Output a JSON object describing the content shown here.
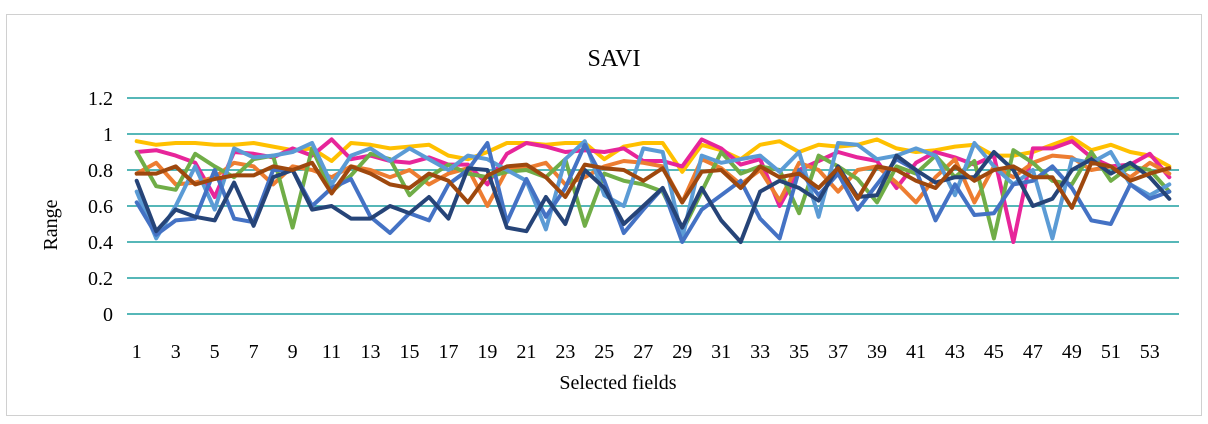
{
  "chart_data": {
    "type": "line",
    "title": "SAVI",
    "xlabel": "Selected fields",
    "ylabel": "Range",
    "ylim": [
      0,
      1.2
    ],
    "yticks": [
      "0",
      "0.2",
      "0.4",
      "0.6",
      "0.8",
      "1",
      "1.2"
    ],
    "xtick_labels": [
      "1",
      "3",
      "5",
      "7",
      "9",
      "11",
      "13",
      "15",
      "17",
      "19",
      "21",
      "23",
      "25",
      "27",
      "29",
      "31",
      "33",
      "35",
      "37",
      "39",
      "41",
      "43",
      "45",
      "47",
      "49",
      "51",
      "53"
    ],
    "grid": true,
    "legend": "none",
    "x": [
      1,
      2,
      3,
      4,
      5,
      6,
      7,
      8,
      9,
      10,
      11,
      12,
      13,
      14,
      15,
      16,
      17,
      18,
      19,
      20,
      21,
      22,
      23,
      24,
      25,
      26,
      27,
      28,
      29,
      30,
      31,
      32,
      33,
      34,
      35,
      36,
      37,
      38,
      39,
      40,
      41,
      42,
      43,
      44,
      45,
      46,
      47,
      48,
      49,
      50,
      51,
      52,
      53,
      54
    ],
    "series": [
      {
        "color": "#ffc000",
        "values": [
          0.96,
          0.94,
          0.95,
          0.95,
          0.94,
          0.94,
          0.95,
          0.93,
          0.91,
          0.92,
          0.85,
          0.95,
          0.94,
          0.92,
          0.93,
          0.94,
          0.88,
          0.86,
          0.9,
          0.95,
          0.95,
          0.94,
          0.95,
          0.95,
          0.86,
          0.93,
          0.95,
          0.95,
          0.79,
          0.94,
          0.91,
          0.86,
          0.94,
          0.96,
          0.9,
          0.94,
          0.93,
          0.94,
          0.97,
          0.92,
          0.9,
          0.91,
          0.93,
          0.94,
          0.88,
          0.88,
          0.9,
          0.94,
          0.98,
          0.91,
          0.94,
          0.9,
          0.88,
          0.82
        ]
      },
      {
        "color": "#e7259a",
        "values": [
          0.9,
          0.91,
          0.88,
          0.84,
          0.65,
          0.9,
          0.89,
          0.87,
          0.92,
          0.88,
          0.97,
          0.86,
          0.88,
          0.85,
          0.84,
          0.87,
          0.83,
          0.83,
          0.72,
          0.89,
          0.95,
          0.93,
          0.9,
          0.91,
          0.9,
          0.92,
          0.85,
          0.85,
          0.82,
          0.97,
          0.92,
          0.83,
          0.86,
          0.6,
          0.8,
          0.85,
          0.9,
          0.87,
          0.85,
          0.7,
          0.84,
          0.9,
          0.87,
          0.83,
          0.88,
          0.4,
          0.92,
          0.92,
          0.96,
          0.87,
          0.82,
          0.83,
          0.89,
          0.76
        ]
      },
      {
        "color": "#ed7d31",
        "values": [
          0.78,
          0.84,
          0.72,
          0.73,
          0.76,
          0.84,
          0.82,
          0.72,
          0.82,
          0.8,
          0.76,
          0.82,
          0.8,
          0.76,
          0.8,
          0.72,
          0.78,
          0.81,
          0.6,
          0.8,
          0.81,
          0.84,
          0.72,
          0.76,
          0.82,
          0.85,
          0.84,
          0.82,
          0.62,
          0.86,
          0.81,
          0.72,
          0.8,
          0.63,
          0.84,
          0.8,
          0.68,
          0.8,
          0.82,
          0.73,
          0.62,
          0.76,
          0.86,
          0.62,
          0.82,
          0.76,
          0.84,
          0.88,
          0.87,
          0.8,
          0.82,
          0.76,
          0.84,
          0.78
        ]
      },
      {
        "color": "#70ad47",
        "values": [
          0.9,
          0.71,
          0.69,
          0.89,
          0.82,
          0.76,
          0.86,
          0.88,
          0.48,
          0.92,
          0.68,
          0.77,
          0.89,
          0.86,
          0.66,
          0.76,
          0.83,
          0.78,
          0.76,
          0.79,
          0.8,
          0.76,
          0.86,
          0.49,
          0.78,
          0.74,
          0.72,
          0.68,
          0.46,
          0.68,
          0.9,
          0.78,
          0.82,
          0.8,
          0.56,
          0.88,
          0.82,
          0.75,
          0.62,
          0.82,
          0.78,
          0.88,
          0.76,
          0.85,
          0.42,
          0.91,
          0.84,
          0.74,
          0.72,
          0.9,
          0.74,
          0.82,
          0.8,
          0.68
        ]
      },
      {
        "color": "#5b9bd5",
        "values": [
          0.68,
          0.42,
          0.6,
          0.82,
          0.58,
          0.92,
          0.87,
          0.88,
          0.9,
          0.95,
          0.72,
          0.88,
          0.92,
          0.85,
          0.92,
          0.86,
          0.8,
          0.88,
          0.86,
          0.8,
          0.74,
          0.47,
          0.86,
          0.96,
          0.66,
          0.6,
          0.92,
          0.9,
          0.42,
          0.88,
          0.84,
          0.86,
          0.88,
          0.79,
          0.9,
          0.54,
          0.95,
          0.94,
          0.86,
          0.88,
          0.92,
          0.88,
          0.66,
          0.95,
          0.82,
          0.72,
          0.8,
          0.42,
          0.86,
          0.84,
          0.9,
          0.72,
          0.66,
          0.72
        ]
      },
      {
        "color": "#4472c4",
        "values": [
          0.62,
          0.44,
          0.52,
          0.53,
          0.8,
          0.53,
          0.51,
          0.8,
          0.8,
          0.6,
          0.7,
          0.75,
          0.54,
          0.45,
          0.56,
          0.52,
          0.72,
          0.8,
          0.95,
          0.51,
          0.75,
          0.54,
          0.7,
          0.94,
          0.74,
          0.45,
          0.58,
          0.7,
          0.4,
          0.58,
          0.66,
          0.74,
          0.53,
          0.42,
          0.8,
          0.66,
          0.78,
          0.58,
          0.72,
          0.86,
          0.8,
          0.52,
          0.72,
          0.55,
          0.56,
          0.72,
          0.74,
          0.82,
          0.7,
          0.52,
          0.5,
          0.72,
          0.64,
          0.68
        ]
      },
      {
        "color": "#264478",
        "values": [
          0.74,
          0.46,
          0.58,
          0.54,
          0.52,
          0.73,
          0.49,
          0.76,
          0.8,
          0.58,
          0.6,
          0.53,
          0.53,
          0.6,
          0.56,
          0.65,
          0.53,
          0.81,
          0.8,
          0.48,
          0.46,
          0.65,
          0.5,
          0.8,
          0.7,
          0.5,
          0.6,
          0.7,
          0.48,
          0.7,
          0.52,
          0.4,
          0.68,
          0.74,
          0.7,
          0.63,
          0.82,
          0.65,
          0.66,
          0.88,
          0.8,
          0.73,
          0.76,
          0.76,
          0.9,
          0.8,
          0.6,
          0.64,
          0.8,
          0.86,
          0.78,
          0.84,
          0.76,
          0.64
        ]
      },
      {
        "color": "#9e480e",
        "values": [
          0.78,
          0.78,
          0.82,
          0.72,
          0.75,
          0.77,
          0.77,
          0.82,
          0.8,
          0.84,
          0.67,
          0.82,
          0.78,
          0.72,
          0.7,
          0.78,
          0.74,
          0.62,
          0.77,
          0.82,
          0.83,
          0.76,
          0.65,
          0.83,
          0.81,
          0.8,
          0.74,
          0.81,
          0.62,
          0.79,
          0.8,
          0.7,
          0.82,
          0.76,
          0.78,
          0.7,
          0.81,
          0.64,
          0.82,
          0.8,
          0.74,
          0.7,
          0.82,
          0.74,
          0.8,
          0.82,
          0.76,
          0.76,
          0.59,
          0.84,
          0.82,
          0.74,
          0.78,
          0.81
        ]
      }
    ]
  }
}
